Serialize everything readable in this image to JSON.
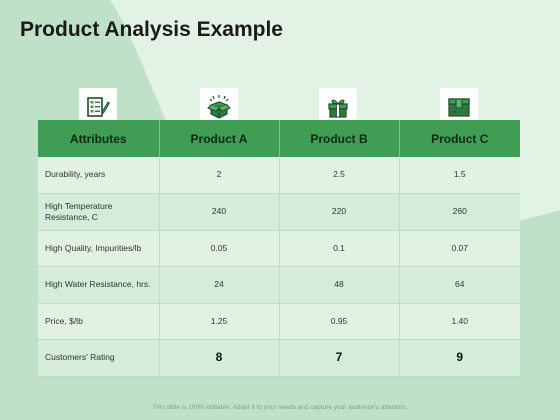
{
  "title": "Product Analysis Example",
  "icons": {
    "attributes": "checklist-icon",
    "product_a": "open-box-icon",
    "product_b": "gift-box-icon",
    "product_c": "package-icon"
  },
  "colors": {
    "header_green": "#3f9d54",
    "background": "#cfe9d6",
    "row_light": "#e1f2e4",
    "row_dark": "#d4ecd9"
  },
  "table": {
    "headers": [
      "Attributes",
      "Product A",
      "Product B",
      "Product C"
    ],
    "rows": [
      {
        "attr": "Durability, years",
        "a": "2",
        "b": "2.5",
        "c": "1.5"
      },
      {
        "attr": "High Temperature Resistance, C",
        "a": "240",
        "b": "220",
        "c": "260"
      },
      {
        "attr": "High Quality, Impurities/lb",
        "a": "0.05",
        "b": "0.1",
        "c": "0.07"
      },
      {
        "attr": "High Water Resistance, hrs.",
        "a": "24",
        "b": "48",
        "c": "64"
      },
      {
        "attr": "Price, $/lb",
        "a": "1.25",
        "b": "0.95",
        "c": "1.40"
      },
      {
        "attr": "Customers' Rating",
        "a": "8",
        "b": "7",
        "c": "9"
      }
    ]
  },
  "footer": "This slide is 100% editable. Adapt it to your needs and capture your audience's attention."
}
